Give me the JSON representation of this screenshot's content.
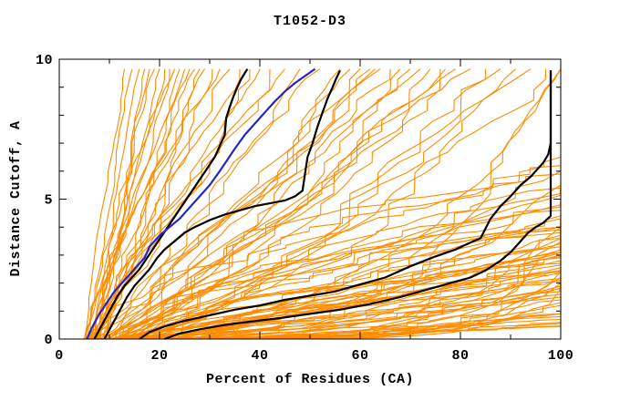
{
  "title": "T1052-D3",
  "axes": {
    "x_label": "Percent of Residues (CA)",
    "y_label": "Distance Cutoff, A"
  },
  "colors": {
    "background": "#ffffff",
    "axis": "#000000",
    "model_line": "#ff8c00",
    "highlight_black": "#000000",
    "highlight_blue": "#2424cc"
  },
  "chart_data": {
    "type": "line",
    "title": "T1052-D3",
    "xlabel": "Percent of Residues (CA)",
    "ylabel": "Distance Cutoff, A",
    "xlim": [
      0,
      100
    ],
    "ylim": [
      0,
      10
    ],
    "x_major_ticks": [
      0,
      20,
      40,
      60,
      80,
      100
    ],
    "x_minor_ticks": [
      10,
      30,
      50,
      70,
      90
    ],
    "y_major_ticks": [
      0,
      5,
      10
    ],
    "y_minor_ticks": [
      1,
      2,
      3,
      4,
      6,
      7,
      8,
      9
    ],
    "grid": false,
    "legend": false,
    "highlight_series": [
      {
        "name": "black-band-lower",
        "color": "#000000",
        "width": 2.2,
        "points": [
          [
            21,
            0
          ],
          [
            24,
            0.2
          ],
          [
            28,
            0.35
          ],
          [
            33,
            0.5
          ],
          [
            38,
            0.62
          ],
          [
            44,
            0.75
          ],
          [
            50,
            0.9
          ],
          [
            56,
            1.05
          ],
          [
            62,
            1.25
          ],
          [
            68,
            1.5
          ],
          [
            73,
            1.75
          ],
          [
            78,
            2.0
          ],
          [
            82,
            2.2
          ],
          [
            85,
            2.45
          ],
          [
            88,
            2.8
          ],
          [
            90,
            3.1
          ],
          [
            92,
            3.5
          ],
          [
            93.5,
            3.8
          ],
          [
            95,
            4.0
          ],
          [
            96.5,
            4.15
          ],
          [
            98,
            4.4
          ],
          [
            98,
            9.6
          ]
        ]
      },
      {
        "name": "black-band-upper",
        "color": "#000000",
        "width": 2.2,
        "points": [
          [
            16,
            0
          ],
          [
            18,
            0.25
          ],
          [
            21,
            0.45
          ],
          [
            25,
            0.65
          ],
          [
            30,
            0.85
          ],
          [
            35,
            1.05
          ],
          [
            40,
            1.2
          ],
          [
            45,
            1.4
          ],
          [
            50,
            1.55
          ],
          [
            55,
            1.7
          ],
          [
            60,
            1.95
          ],
          [
            65,
            2.2
          ],
          [
            70,
            2.6
          ],
          [
            75,
            2.95
          ],
          [
            79,
            3.2
          ],
          [
            82,
            3.45
          ],
          [
            84,
            3.6
          ],
          [
            86,
            4.3
          ],
          [
            88,
            4.75
          ],
          [
            90,
            5.1
          ],
          [
            92,
            5.5
          ],
          [
            94,
            5.8
          ],
          [
            95.5,
            6.1
          ],
          [
            96.5,
            6.3
          ],
          [
            97.5,
            6.6
          ],
          [
            98,
            7.0
          ],
          [
            98,
            9.6
          ]
        ]
      },
      {
        "name": "black-steep-2",
        "color": "#000000",
        "width": 2.2,
        "points": [
          [
            9,
            0
          ],
          [
            10.5,
            0.5
          ],
          [
            12,
            1.0
          ],
          [
            13.5,
            1.5
          ],
          [
            15,
            1.9
          ],
          [
            16.5,
            2.2
          ],
          [
            18,
            2.5
          ],
          [
            19.5,
            2.9
          ],
          [
            21,
            3.2
          ],
          [
            23,
            3.5
          ],
          [
            25,
            3.8
          ],
          [
            27,
            4.0
          ],
          [
            30,
            4.25
          ],
          [
            33,
            4.45
          ],
          [
            36,
            4.6
          ],
          [
            39,
            4.75
          ],
          [
            42,
            4.85
          ],
          [
            45,
            4.95
          ],
          [
            47,
            5.1
          ],
          [
            48.5,
            5.3
          ],
          [
            49,
            5.9
          ],
          [
            49.5,
            6.5
          ],
          [
            50.5,
            7.0
          ],
          [
            51.5,
            7.6
          ],
          [
            52.5,
            8.1
          ],
          [
            53.5,
            8.6
          ],
          [
            54.5,
            9.0
          ],
          [
            55.2,
            9.3
          ],
          [
            56,
            9.6
          ]
        ]
      },
      {
        "name": "black-steep-1",
        "color": "#000000",
        "width": 2.2,
        "points": [
          [
            7,
            0
          ],
          [
            8.5,
            0.5
          ],
          [
            10,
            1.0
          ],
          [
            11.5,
            1.5
          ],
          [
            13,
            1.9
          ],
          [
            14.5,
            2.2
          ],
          [
            16,
            2.5
          ],
          [
            17.5,
            2.9
          ],
          [
            19,
            3.3
          ],
          [
            20.5,
            3.7
          ],
          [
            22,
            4.1
          ],
          [
            23.5,
            4.5
          ],
          [
            25,
            4.9
          ],
          [
            26.5,
            5.3
          ],
          [
            28,
            5.7
          ],
          [
            29.5,
            6.1
          ],
          [
            31,
            6.5
          ],
          [
            32,
            6.9
          ],
          [
            33,
            7.3
          ],
          [
            33.3,
            7.9
          ],
          [
            34,
            8.3
          ],
          [
            34.8,
            8.7
          ],
          [
            35.5,
            9.0
          ],
          [
            36.3,
            9.3
          ],
          [
            37.5,
            9.65
          ]
        ]
      },
      {
        "name": "blue-line",
        "color": "#2424cc",
        "width": 2.2,
        "points": [
          [
            5.5,
            0
          ],
          [
            6.5,
            0.4
          ],
          [
            8,
            0.9
          ],
          [
            9.5,
            1.3
          ],
          [
            11,
            1.7
          ],
          [
            13,
            2.1
          ],
          [
            15,
            2.5
          ],
          [
            17,
            2.9
          ],
          [
            18,
            3.3
          ],
          [
            20,
            3.7
          ],
          [
            22,
            4.0
          ],
          [
            24,
            4.3
          ],
          [
            26,
            4.7
          ],
          [
            28,
            5.1
          ],
          [
            30,
            5.5
          ],
          [
            32,
            6.0
          ],
          [
            33.5,
            6.4
          ],
          [
            35,
            6.8
          ],
          [
            37,
            7.3
          ],
          [
            39,
            7.7
          ],
          [
            41,
            8.1
          ],
          [
            43,
            8.5
          ],
          [
            45,
            8.85
          ],
          [
            47,
            9.15
          ],
          [
            49,
            9.4
          ],
          [
            51,
            9.65
          ]
        ]
      }
    ],
    "model_series": {
      "name": "model-lines",
      "color": "#ff8c00",
      "count": 111,
      "encoding": "[x_at_y0_pct, x_end_pct, y_end_A, shape_exponent]",
      "lines": [
        [
          5,
          13,
          9.65,
          1
        ],
        [
          5.8,
          14.5,
          9.65,
          1.05
        ],
        [
          6.6,
          16,
          9.65,
          0.95
        ],
        [
          7.4,
          17,
          9.65,
          1.1
        ],
        [
          5.2,
          18,
          9.65,
          1
        ],
        [
          6,
          19,
          9.65,
          0.9
        ],
        [
          6.8,
          20,
          9.65,
          1.05
        ],
        [
          7.6,
          21,
          9.65,
          1
        ],
        [
          5.4,
          22,
          9.65,
          1.1
        ],
        [
          6.2,
          23,
          9.65,
          0.95
        ],
        [
          7,
          24,
          9.65,
          1
        ],
        [
          7.8,
          25,
          9.65,
          1.05
        ],
        [
          5.6,
          26,
          9.65,
          1
        ],
        [
          6.4,
          27,
          9.65,
          0.9
        ],
        [
          7.2,
          28,
          9.65,
          1.05
        ],
        [
          8,
          29,
          9.65,
          1
        ],
        [
          5.8,
          30.5,
          9.65,
          1.1
        ],
        [
          6.6,
          32,
          9.65,
          1
        ],
        [
          7.4,
          34,
          9.65,
          0.95
        ],
        [
          8.2,
          36,
          9.65,
          1.05
        ],
        [
          6,
          38,
          9.65,
          1
        ],
        [
          6.8,
          40,
          9.65,
          1.1
        ],
        [
          7.6,
          42,
          9.65,
          1
        ],
        [
          8.4,
          45,
          9.65,
          0.95
        ],
        [
          6.4,
          48,
          9.65,
          1.05
        ],
        [
          7.2,
          52,
          9.65,
          1
        ],
        [
          8,
          56,
          9.65,
          1.1
        ],
        [
          9,
          58,
          9.65,
          1.2
        ],
        [
          10,
          60,
          9.65,
          1
        ],
        [
          11,
          62,
          9.65,
          1.15
        ],
        [
          12,
          64,
          9.65,
          1.25
        ],
        [
          8.5,
          66,
          9.65,
          1.1
        ],
        [
          9.5,
          68,
          9.65,
          1.3
        ],
        [
          10.5,
          70,
          9.65,
          1.15
        ],
        [
          11.5,
          72,
          9.65,
          1.2
        ],
        [
          12.5,
          74,
          9.65,
          1.35
        ],
        [
          9,
          76,
          9.65,
          1.25
        ],
        [
          10,
          79,
          9.65,
          1.4
        ],
        [
          11,
          82,
          9.65,
          1.3
        ],
        [
          12,
          85,
          9.65,
          1.45
        ],
        [
          13,
          88,
          9.65,
          1.35
        ],
        [
          9.5,
          91,
          9.65,
          1.5
        ],
        [
          10.5,
          94,
          9.65,
          1.4
        ],
        [
          11.5,
          97,
          9.65,
          1.55
        ],
        [
          10,
          100,
          9.65,
          2.6
        ],
        [
          12,
          100,
          9.65,
          3
        ],
        [
          8.5,
          63,
          9.65,
          1.05
        ],
        [
          13.5,
          77,
          9.65,
          1.25
        ],
        [
          10,
          100,
          6.5,
          0.6
        ],
        [
          12,
          100,
          6.2,
          0.7
        ],
        [
          11,
          100,
          5.9,
          0.55
        ],
        [
          13,
          100,
          5.6,
          0.75
        ],
        [
          14,
          100,
          5.4,
          0.65
        ],
        [
          12,
          100,
          5.2,
          0.8
        ],
        [
          15,
          100,
          5,
          0.6
        ],
        [
          13,
          100,
          4.8,
          0.85
        ],
        [
          16,
          100,
          4.6,
          0.7
        ],
        [
          14,
          100,
          4.4,
          0.6
        ],
        [
          17,
          100,
          4.3,
          0.8
        ],
        [
          15,
          100,
          4.15,
          0.7
        ],
        [
          11,
          100,
          4,
          0.9
        ],
        [
          16,
          100,
          3.9,
          1.1
        ],
        [
          12,
          100,
          3.8,
          0.8
        ],
        [
          18,
          100,
          3.7,
          1.2
        ],
        [
          13,
          100,
          3.6,
          1
        ],
        [
          19,
          100,
          3.5,
          0.9
        ],
        [
          14,
          100,
          3.4,
          1.15
        ],
        [
          20,
          100,
          3.3,
          1
        ],
        [
          15,
          100,
          3.2,
          0.85
        ],
        [
          21,
          100,
          3.1,
          1.25
        ],
        [
          16,
          100,
          3,
          0.95
        ],
        [
          22,
          100,
          2.95,
          1.1
        ],
        [
          13,
          100,
          2.9,
          1.3
        ],
        [
          23,
          100,
          2.8,
          1
        ],
        [
          17,
          100,
          2.7,
          0.9
        ],
        [
          24,
          100,
          2.6,
          1.2
        ],
        [
          14,
          100,
          2.55,
          1.05
        ],
        [
          18,
          100,
          2.5,
          1.35
        ],
        [
          25,
          100,
          2.45,
          0.95
        ],
        [
          15,
          100,
          2.4,
          1.15
        ],
        [
          19,
          100,
          2.3,
          1.3
        ],
        [
          22,
          100,
          2.2,
          1
        ],
        [
          16,
          100,
          2.1,
          1.5
        ],
        [
          24,
          100,
          2,
          1.2
        ],
        [
          20,
          100,
          1.9,
          1.6
        ],
        [
          17,
          100,
          1.8,
          1.1
        ],
        [
          26,
          100,
          1.7,
          1.4
        ],
        [
          21,
          100,
          1.6,
          1.7
        ],
        [
          18,
          100,
          1.5,
          1.2
        ],
        [
          23,
          100,
          1.4,
          1.5
        ],
        [
          12,
          100,
          4.5,
          3
        ],
        [
          14,
          100,
          4,
          3.5
        ],
        [
          16,
          100,
          3.6,
          2.8
        ],
        [
          13,
          100,
          3.2,
          4
        ],
        [
          15,
          100,
          2.8,
          3.2
        ],
        [
          17,
          100,
          2.4,
          4.5
        ],
        [
          19,
          100,
          5.5,
          2.5
        ],
        [
          11,
          100,
          6,
          2.2
        ],
        [
          16,
          100,
          2.2,
          6
        ],
        [
          18,
          100,
          2,
          6.5
        ],
        [
          20,
          100,
          1.8,
          7
        ],
        [
          28,
          100,
          1.2,
          2.2
        ],
        [
          32,
          100,
          1,
          2
        ],
        [
          36,
          100,
          0.9,
          1.8
        ],
        [
          40,
          100,
          0.8,
          1.6
        ],
        [
          30,
          100,
          0.7,
          1.4
        ],
        [
          34,
          100,
          0.6,
          1.3
        ],
        [
          38,
          100,
          0.55,
          1.2
        ],
        [
          26,
          100,
          0.5,
          1.5
        ],
        [
          22,
          100,
          0.45,
          1.3
        ],
        [
          19,
          100,
          1.3,
          4
        ]
      ]
    }
  }
}
